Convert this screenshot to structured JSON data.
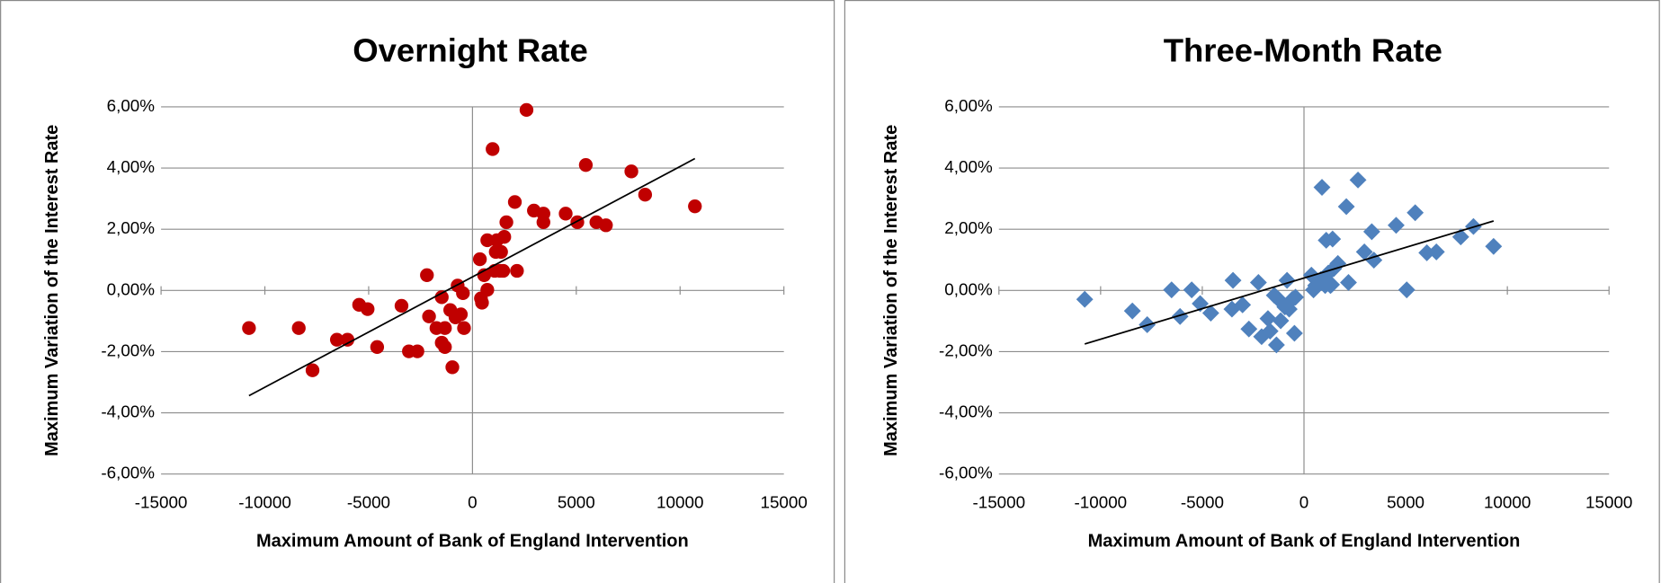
{
  "chart_data": [
    {
      "type": "scatter",
      "title": "Overnight Rate",
      "xlabel": "Maximum Amount of Bank of England Intervention",
      "ylabel": "Maximum Variation of the Interest Rate",
      "marker": "circle",
      "color": "#c00000",
      "x": [
        -10765,
        -8367,
        -7704,
        -6531,
        -6020,
        -5459,
        -5051,
        -4592,
        -3418,
        -3061,
        -2653,
        -2194,
        -2092,
        -1735,
        -1480,
        -1480,
        -1327,
        -1327,
        -1071,
        -969,
        -816,
        -714,
        -561,
        -459,
        -408,
        357,
        408,
        459,
        561,
        714,
        714,
        969,
        1071,
        1122,
        1173,
        1327,
        1378,
        1480,
        1531,
        1633,
        2041,
        2143,
        2602,
        2959,
        3418,
        3418,
        4490,
        5051,
        5459,
        5969,
        6429,
        7653,
        8316,
        10714
      ],
      "values": [
        -1.23,
        -1.23,
        -2.61,
        -1.61,
        -1.61,
        -0.47,
        -0.61,
        -1.85,
        -0.5,
        -1.99,
        -1.99,
        0.5,
        -0.85,
        -1.23,
        -0.22,
        -1.71,
        -1.23,
        -1.85,
        -0.64,
        -2.51,
        -0.88,
        0.16,
        -0.78,
        -0.09,
        -1.23,
        1.02,
        -0.26,
        -0.4,
        0.5,
        0.02,
        1.64,
        4.62,
        0.64,
        1.26,
        1.64,
        0.64,
        1.26,
        0.64,
        1.75,
        2.23,
        2.89,
        0.64,
        5.9,
        2.61,
        2.23,
        2.51,
        2.51,
        2.23,
        4.1,
        2.23,
        2.13,
        3.89,
        3.13,
        2.75
      ],
      "trendline": {
        "x": [
          -10765,
          10714
        ],
        "values": [
          -3.44,
          4.31
        ],
        "color": "#000000"
      },
      "xlim": [
        -15000,
        15000
      ],
      "xticks": [
        -15000,
        -10000,
        -5000,
        0,
        5000,
        10000,
        15000
      ],
      "ylim": [
        -6,
        6
      ],
      "yticks": [
        {
          "value": -6,
          "label": "-6,00%"
        },
        {
          "value": -4,
          "label": "-4,00%"
        },
        {
          "value": -2,
          "label": "-2,00%"
        },
        {
          "value": 0,
          "label": "0,00%"
        },
        {
          "value": 2,
          "label": "2,00%"
        },
        {
          "value": 4,
          "label": "4,00%"
        },
        {
          "value": 6,
          "label": "6,00%"
        }
      ],
      "grid": true
    },
    {
      "type": "scatter",
      "title": "Three-Month Rate",
      "xlabel": "Maximum Amount of Bank of England Intervention",
      "ylabel": "Maximum Variation of the Interest Rate",
      "marker": "diamond",
      "color": "#4f81bd",
      "x": [
        -10781,
        -8438,
        -7708,
        -6510,
        -6094,
        -5521,
        -5104,
        -4583,
        -3490,
        -3542,
        -3021,
        -2708,
        -2240,
        -2083,
        -1771,
        -1667,
        -1458,
        -1354,
        -1250,
        -1146,
        -938,
        -833,
        -729,
        -573,
        -469,
        -417,
        365,
        469,
        573,
        833,
        885,
        1042,
        1094,
        1198,
        1302,
        1354,
        1406,
        1458,
        1667,
        2083,
        2188,
        2656,
        2969,
        3333,
        3438,
        4531,
        5052,
        5469,
        6042,
        6510,
        7708,
        8333,
        9323
      ],
      "values": [
        -0.29,
        -0.67,
        -1.12,
        0.02,
        -0.85,
        0.02,
        -0.43,
        -0.74,
        0.33,
        -0.61,
        -0.47,
        -1.26,
        0.26,
        -1.51,
        -0.92,
        -1.33,
        -0.16,
        -1.78,
        -0.29,
        -0.99,
        -0.54,
        0.33,
        -0.61,
        -0.29,
        -1.4,
        -0.22,
        0.5,
        0.02,
        0.16,
        0.36,
        3.37,
        0.16,
        1.64,
        0.57,
        0.16,
        0.19,
        1.68,
        0.71,
        0.88,
        2.74,
        0.26,
        3.61,
        1.26,
        1.92,
        0.99,
        2.13,
        0.02,
        2.54,
        1.23,
        1.26,
        1.75,
        2.09,
        1.44
      ],
      "trendline": {
        "x": [
          -10781,
          9323
        ],
        "values": [
          -1.75,
          2.27
        ],
        "color": "#000000"
      },
      "xlim": [
        -15000,
        15000
      ],
      "xticks": [
        -15000,
        -10000,
        -5000,
        0,
        5000,
        10000,
        15000
      ],
      "ylim": [
        -6,
        6
      ],
      "yticks": [
        {
          "value": -6,
          "label": "-6,00%"
        },
        {
          "value": -4,
          "label": "-4,00%"
        },
        {
          "value": -2,
          "label": "-2,00%"
        },
        {
          "value": 0,
          "label": "0,00%"
        },
        {
          "value": 2,
          "label": "2,00%"
        },
        {
          "value": 4,
          "label": "4,00%"
        },
        {
          "value": 6,
          "label": "6,00%"
        }
      ],
      "grid": true
    }
  ]
}
